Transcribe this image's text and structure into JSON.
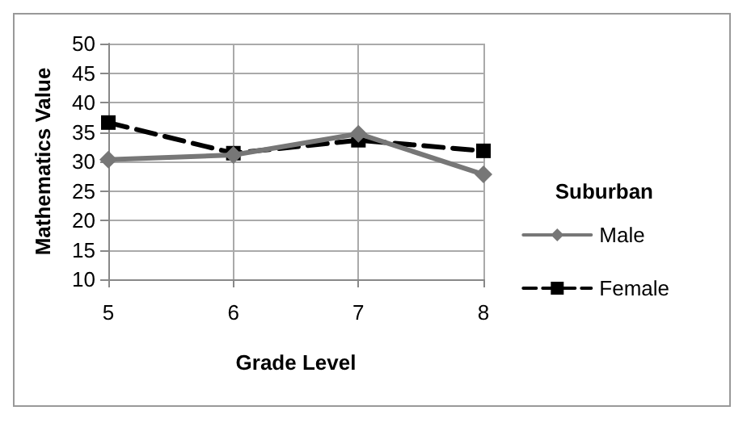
{
  "chart_data": {
    "type": "line",
    "xlabel": "Grade Level",
    "ylabel": "Mathematics Value",
    "legend_title": "Suburban",
    "x": [
      5,
      6,
      7,
      8
    ],
    "xlim": [
      5,
      8
    ],
    "xticks": [
      5,
      6,
      7,
      8
    ],
    "ylim": [
      10,
      50
    ],
    "yticks": [
      10,
      15,
      20,
      25,
      30,
      35,
      40,
      45,
      50
    ],
    "grid": true,
    "legend": "right",
    "series": [
      {
        "name": "Male",
        "color": "#777777",
        "marker": "diamond",
        "line_style": "solid",
        "values": [
          30.3,
          31.1,
          34.7,
          27.8
        ]
      },
      {
        "name": "Female",
        "color": "#000000",
        "marker": "square",
        "line_style": "dashed",
        "values": [
          36.6,
          31.4,
          33.6,
          31.8
        ]
      }
    ]
  }
}
